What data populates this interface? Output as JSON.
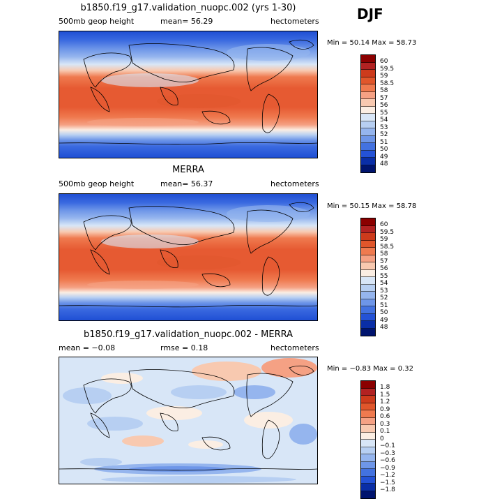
{
  "season": "DJF",
  "panels": [
    {
      "title": "b1850.f19_g17.validation_nuopc.002 (yrs 1-30)",
      "left_label": "500mb geop height",
      "mid_label": "mean=  56.29",
      "right_label": "hectometers",
      "minmax": "Min =  50.14  Max =  58.73",
      "levels": [
        "60",
        "59.5",
        "59",
        "58.5",
        "58",
        "57",
        "56",
        "55",
        "54",
        "53",
        "52",
        "51",
        "50",
        "49",
        "48"
      ],
      "colors": [
        "#8b0000",
        "#b22222",
        "#cd3b1c",
        "#e0562b",
        "#ef7a4f",
        "#f5a184",
        "#f8c9b0",
        "#fbeee3",
        "#d8e6f7",
        "#b7cff2",
        "#95b5ee",
        "#6e96e8",
        "#4372e0",
        "#2452d6",
        "#0a2ea6",
        "#00146e"
      ]
    },
    {
      "title": "MERRA",
      "left_label": "500mb geop height",
      "mid_label": "mean=  56.37",
      "right_label": "hectometers",
      "minmax": "Min =  50.15  Max =  58.78",
      "levels": [
        "60",
        "59.5",
        "59",
        "58.5",
        "58",
        "57",
        "56",
        "55",
        "54",
        "53",
        "52",
        "51",
        "50",
        "49",
        "48"
      ],
      "colors": [
        "#8b0000",
        "#b22222",
        "#cd3b1c",
        "#e0562b",
        "#ef7a4f",
        "#f5a184",
        "#f8c9b0",
        "#fbeee3",
        "#d8e6f7",
        "#b7cff2",
        "#95b5ee",
        "#6e96e8",
        "#4372e0",
        "#2452d6",
        "#0a2ea6",
        "#00146e"
      ]
    },
    {
      "title": "b1850.f19_g17.validation_nuopc.002 - MERRA",
      "left_label": "mean =  −0.08",
      "mid_label": "rmse =   0.18",
      "right_label": "hectometers",
      "minmax": "Min =  −0.83  Max =   0.32",
      "levels": [
        "1.8",
        "1.5",
        "1.2",
        "0.9",
        "0.6",
        "0.3",
        "0.1",
        "0",
        "−0.1",
        "−0.3",
        "−0.6",
        "−0.9",
        "−1.2",
        "−1.5",
        "−1.8"
      ],
      "colors": [
        "#8b0000",
        "#b22222",
        "#cd3b1c",
        "#e0562b",
        "#ef7a4f",
        "#f5a184",
        "#f8c9b0",
        "#fbeee3",
        "#d8e6f7",
        "#b7cff2",
        "#95b5ee",
        "#6e96e8",
        "#4372e0",
        "#2452d6",
        "#0a2ea6",
        "#00146e"
      ]
    }
  ]
}
